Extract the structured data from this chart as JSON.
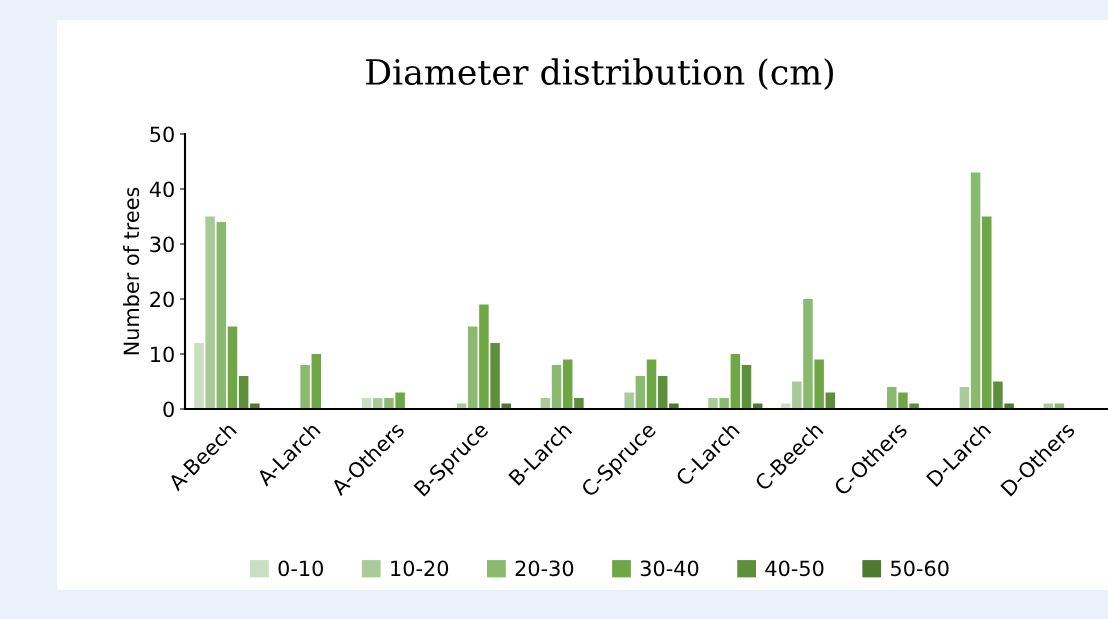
{
  "chart_data": {
    "type": "bar",
    "title": "Diameter distribution (cm)",
    "ylabel": "Number of trees",
    "categories": [
      "A-Beech",
      "A-Larch",
      "A-Others",
      "B-Spruce",
      "B-Larch",
      "C-Spruce",
      "C-Larch",
      "C-Beech",
      "C-Others",
      "D-Larch",
      "D-Others"
    ],
    "series": [
      {
        "name": "0-10",
        "color": "#c9dfc1",
        "values": [
          12,
          0,
          2,
          0,
          0,
          0,
          0,
          1,
          0,
          0,
          0
        ]
      },
      {
        "name": "10-20",
        "color": "#a9cb98",
        "values": [
          35,
          0,
          2,
          1,
          2,
          3,
          2,
          5,
          0,
          4,
          1
        ]
      },
      {
        "name": "20-30",
        "color": "#8aba6f",
        "values": [
          34,
          8,
          2,
          15,
          8,
          6,
          2,
          20,
          4,
          43,
          1
        ]
      },
      {
        "name": "30-40",
        "color": "#6fa646",
        "values": [
          15,
          10,
          3,
          19,
          9,
          9,
          10,
          9,
          3,
          35,
          0
        ]
      },
      {
        "name": "40-50",
        "color": "#5e8f3a",
        "values": [
          6,
          0,
          0,
          12,
          2,
          6,
          8,
          3,
          1,
          5,
          0
        ]
      },
      {
        "name": "50-60",
        "color": "#4e7a30",
        "values": [
          1,
          0,
          0,
          1,
          0,
          1,
          1,
          0,
          0,
          1,
          0
        ]
      }
    ],
    "ylim": [
      0,
      50
    ],
    "yticks": [
      0,
      10,
      20,
      30,
      40,
      50
    ],
    "grid": false,
    "legend": "bottom"
  }
}
